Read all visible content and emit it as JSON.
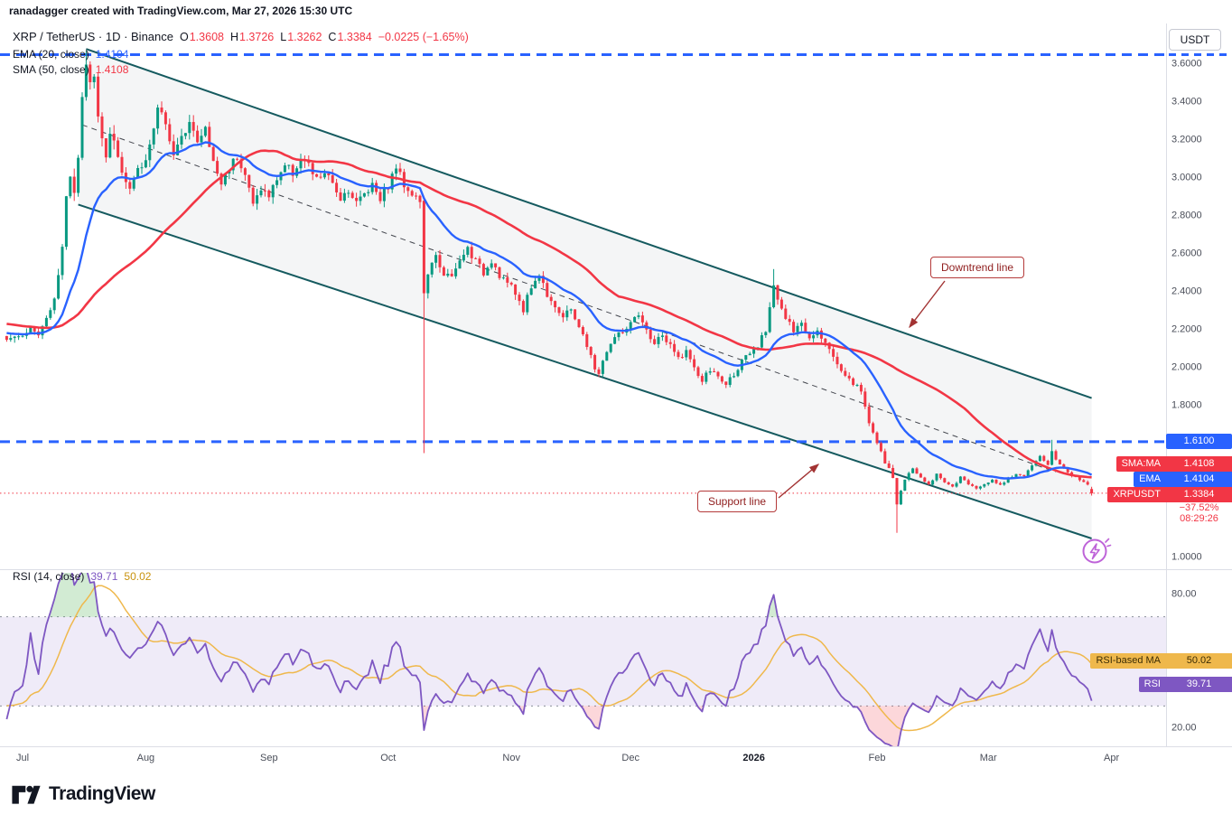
{
  "header": {
    "credit": "ranadagger created with TradingView.com, Mar 27, 2026 15:30 UTC"
  },
  "symbol": {
    "title": "XRP / TetherUS · 1D · Binance",
    "ohlc": [
      {
        "k": "O",
        "v": "1.3608"
      },
      {
        "k": "H",
        "v": "1.3726"
      },
      {
        "k": "L",
        "v": "1.3262"
      },
      {
        "k": "C",
        "v": "1.3384"
      }
    ],
    "change": "−0.0225 (−1.65%)"
  },
  "indicators": {
    "ema": {
      "label": "EMA (20, close)",
      "value": "1.4104"
    },
    "sma": {
      "label": "SMA (50, close)",
      "value": "1.4108"
    },
    "rsi": {
      "label": "RSI (14, close)",
      "value": "39.71",
      "ma_value": "50.02"
    }
  },
  "price_axis": {
    "currency": "USDT",
    "ticks": [
      {
        "label": "3.6000",
        "price": 3.6
      },
      {
        "label": "3.4000",
        "price": 3.4
      },
      {
        "label": "3.2000",
        "price": 3.2
      },
      {
        "label": "3.0000",
        "price": 3.0
      },
      {
        "label": "2.8000",
        "price": 2.8
      },
      {
        "label": "2.6000",
        "price": 2.6
      },
      {
        "label": "2.4000",
        "price": 2.4
      },
      {
        "label": "2.2000",
        "price": 2.2
      },
      {
        "label": "2.0000",
        "price": 2.0
      },
      {
        "label": "1.8000",
        "price": 1.8
      },
      {
        "label": "1.0000",
        "price": 1.0
      }
    ],
    "level_badge": "1.6100",
    "sma_badge": {
      "label": "SMA:MA",
      "value": "1.4108"
    },
    "ema_badge": {
      "label": "EMA",
      "value": "1.4104"
    },
    "symbol_badge": {
      "label": "XRPUSDT",
      "value": "1.3384"
    },
    "change_percent": "−37.52%",
    "countdown": "08:29:26"
  },
  "rsi_axis": {
    "ticks": [
      {
        "label": "80.00",
        "value": 80
      },
      {
        "label": "20.00",
        "value": 20
      }
    ],
    "ma_badge": {
      "label": "RSI-based MA",
      "value": "50.02"
    },
    "rsi_badge": {
      "label": "RSI",
      "value": "39.71"
    }
  },
  "annotations": {
    "downtrend_label": "Downtrend line",
    "support_label": "Support line"
  },
  "logo": {
    "text": "TradingView"
  },
  "chart_data": {
    "type": "candlestick",
    "symbol": "XRPUSDT",
    "timeframe": "1D",
    "title": "XRP / TetherUS · 1D · Binance",
    "last_candle": {
      "o": 1.3608,
      "h": 1.3726,
      "l": 1.3262,
      "c": 1.3384
    },
    "close_anchors": [
      [
        -4,
        2.16
      ],
      [
        0,
        2.18
      ],
      [
        2,
        2.21
      ],
      [
        4,
        2.17
      ],
      [
        6,
        2.26
      ],
      [
        8,
        2.38
      ],
      [
        10,
        2.62
      ],
      [
        11,
        2.92
      ],
      [
        12,
        3.02
      ],
      [
        13,
        2.92
      ],
      [
        14,
        3.1
      ],
      [
        15,
        3.42
      ],
      [
        16,
        3.58
      ],
      [
        17,
        3.48
      ],
      [
        18,
        3.56
      ],
      [
        19,
        3.3
      ],
      [
        20,
        3.2
      ],
      [
        21,
        3.12
      ],
      [
        22,
        3.24
      ],
      [
        23,
        3.18
      ],
      [
        25,
        3.0
      ],
      [
        27,
        2.94
      ],
      [
        29,
        3.06
      ],
      [
        31,
        3.1
      ],
      [
        33,
        3.24
      ],
      [
        34,
        3.38
      ],
      [
        36,
        3.3
      ],
      [
        38,
        3.12
      ],
      [
        40,
        3.2
      ],
      [
        42,
        3.32
      ],
      [
        44,
        3.18
      ],
      [
        46,
        3.26
      ],
      [
        48,
        3.08
      ],
      [
        50,
        2.97
      ],
      [
        52,
        3.06
      ],
      [
        54,
        3.12
      ],
      [
        56,
        3.02
      ],
      [
        58,
        2.86
      ],
      [
        60,
        2.95
      ],
      [
        62,
        2.9
      ],
      [
        64,
        3.0
      ],
      [
        66,
        3.07
      ],
      [
        68,
        3.03
      ],
      [
        70,
        3.1
      ],
      [
        72,
        3.06
      ],
      [
        74,
        2.99
      ],
      [
        76,
        3.03
      ],
      [
        78,
        2.96
      ],
      [
        80,
        2.9
      ],
      [
        82,
        2.94
      ],
      [
        84,
        2.87
      ],
      [
        86,
        2.92
      ],
      [
        88,
        2.97
      ],
      [
        90,
        2.9
      ],
      [
        92,
        2.96
      ],
      [
        94,
        3.06
      ],
      [
        96,
        2.97
      ],
      [
        98,
        2.92
      ],
      [
        100,
        2.88
      ],
      [
        101,
        2.38
      ],
      [
        102,
        2.5
      ],
      [
        104,
        2.58
      ],
      [
        106,
        2.5
      ],
      [
        108,
        2.47
      ],
      [
        110,
        2.56
      ],
      [
        112,
        2.63
      ],
      [
        114,
        2.56
      ],
      [
        116,
        2.5
      ],
      [
        118,
        2.57
      ],
      [
        120,
        2.49
      ],
      [
        122,
        2.45
      ],
      [
        124,
        2.39
      ],
      [
        126,
        2.31
      ],
      [
        128,
        2.43
      ],
      [
        130,
        2.49
      ],
      [
        132,
        2.39
      ],
      [
        134,
        2.33
      ],
      [
        136,
        2.26
      ],
      [
        138,
        2.31
      ],
      [
        140,
        2.22
      ],
      [
        142,
        2.11
      ],
      [
        144,
        2.0
      ],
      [
        145,
        1.97
      ],
      [
        147,
        2.09
      ],
      [
        149,
        2.16
      ],
      [
        151,
        2.19
      ],
      [
        153,
        2.23
      ],
      [
        155,
        2.27
      ],
      [
        157,
        2.19
      ],
      [
        159,
        2.13
      ],
      [
        161,
        2.17
      ],
      [
        163,
        2.11
      ],
      [
        165,
        2.05
      ],
      [
        167,
        2.09
      ],
      [
        169,
        1.99
      ],
      [
        171,
        1.93
      ],
      [
        173,
        1.99
      ],
      [
        175,
        1.95
      ],
      [
        177,
        1.91
      ],
      [
        179,
        1.97
      ],
      [
        181,
        2.03
      ],
      [
        183,
        2.07
      ],
      [
        185,
        2.11
      ],
      [
        187,
        2.2
      ],
      [
        189,
        2.45
      ],
      [
        190,
        2.36
      ],
      [
        192,
        2.26
      ],
      [
        194,
        2.19
      ],
      [
        196,
        2.23
      ],
      [
        198,
        2.16
      ],
      [
        200,
        2.21
      ],
      [
        202,
        2.13
      ],
      [
        204,
        2.06
      ],
      [
        206,
        1.99
      ],
      [
        208,
        1.94
      ],
      [
        210,
        1.9
      ],
      [
        211,
        1.87
      ],
      [
        213,
        1.72
      ],
      [
        215,
        1.6
      ],
      [
        217,
        1.5
      ],
      [
        219,
        1.42
      ],
      [
        220,
        1.28
      ],
      [
        221,
        1.36
      ],
      [
        222,
        1.41
      ],
      [
        224,
        1.47
      ],
      [
        226,
        1.42
      ],
      [
        228,
        1.38
      ],
      [
        230,
        1.44
      ],
      [
        232,
        1.4
      ],
      [
        234,
        1.37
      ],
      [
        236,
        1.42
      ],
      [
        238,
        1.39
      ],
      [
        240,
        1.36
      ],
      [
        242,
        1.39
      ],
      [
        244,
        1.41
      ],
      [
        246,
        1.38
      ],
      [
        248,
        1.42
      ],
      [
        250,
        1.44
      ],
      [
        252,
        1.43
      ],
      [
        254,
        1.48
      ],
      [
        256,
        1.53
      ],
      [
        258,
        1.49
      ],
      [
        259,
        1.56
      ],
      [
        260,
        1.52
      ],
      [
        262,
        1.47
      ],
      [
        264,
        1.43
      ],
      [
        266,
        1.41
      ],
      [
        268,
        1.39
      ],
      [
        269,
        1.3384
      ]
    ],
    "special_wicks": [
      {
        "day": 16,
        "high": 3.67
      },
      {
        "day": 101,
        "open": 2.88,
        "low": 1.55
      },
      {
        "day": 189,
        "high": 2.52
      },
      {
        "day": 220,
        "low": 1.13
      },
      {
        "day": 259,
        "high": 1.62
      }
    ],
    "levels": {
      "resistance_dashed": 3.65,
      "support_dashed": 1.61,
      "current_price": 1.3384
    },
    "channel": {
      "upper": [
        [
          16,
          3.68
        ],
        [
          269,
          1.84
        ]
      ],
      "lower": [
        [
          14,
          2.86
        ],
        [
          269,
          1.1
        ]
      ],
      "mid_dashed": [
        [
          15,
          3.28
        ],
        [
          260,
          1.45
        ]
      ]
    },
    "moving_averages": [
      {
        "name": "EMA 20",
        "color": "#2962FF",
        "last": 1.4104
      },
      {
        "name": "SMA 50",
        "color": "#F23645",
        "last": 1.4108
      }
    ],
    "rsi": {
      "length": 14,
      "last": 39.71,
      "ma_last": 50.02,
      "overbought": 70,
      "oversold": 30,
      "axis_range": [
        12,
        88
      ]
    },
    "time_axis": [
      {
        "label": "Jul",
        "day": 0
      },
      {
        "label": "Aug",
        "day": 31
      },
      {
        "label": "Sep",
        "day": 62
      },
      {
        "label": "Oct",
        "day": 92
      },
      {
        "label": "Nov",
        "day": 123
      },
      {
        "label": "Dec",
        "day": 153
      },
      {
        "label": "2026",
        "day": 184,
        "bold": true
      },
      {
        "label": "Feb",
        "day": 215
      },
      {
        "label": "Mar",
        "day": 243
      },
      {
        "label": "Apr",
        "day": 274
      }
    ],
    "colors": {
      "up": "#089981",
      "down": "#F23645",
      "channel": "#155A5F",
      "level_dashed": "#2962FF",
      "current_dotted": "#F23645",
      "rsi": "#7E57C2",
      "rsi_ma": "#EFB84C",
      "rsi_band_fill": "rgba(126,87,194,0.12)",
      "overbought_fill": "rgba(76,175,80,0.25)",
      "oversold_fill": "rgba(242,54,69,0.2)"
    }
  }
}
